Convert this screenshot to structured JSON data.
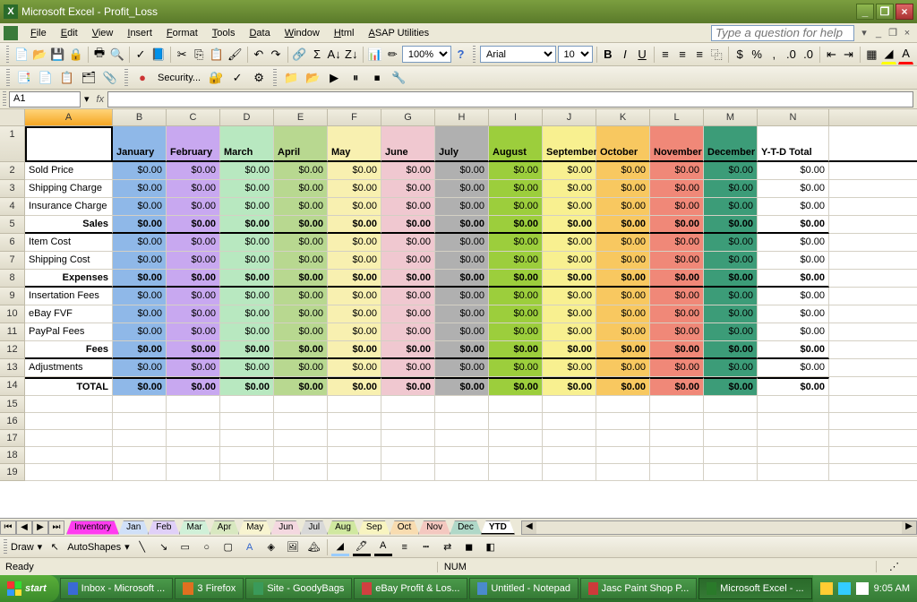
{
  "window": {
    "title": "Microsoft Excel - Profit_Loss"
  },
  "menu": [
    "File",
    "Edit",
    "View",
    "Insert",
    "Format",
    "Tools",
    "Data",
    "Window",
    "Html",
    "ASAP Utilities"
  ],
  "help_placeholder": "Type a question for help",
  "toolbar2": {
    "font": "Arial",
    "size": "10",
    "zoom": "100%",
    "security": "Security..."
  },
  "namebox": "A1",
  "columns": [
    "A",
    "B",
    "C",
    "D",
    "E",
    "F",
    "G",
    "H",
    "I",
    "J",
    "K",
    "L",
    "M",
    "N"
  ],
  "months": [
    "January",
    "February",
    "March",
    "April",
    "May",
    "June",
    "July",
    "August",
    "September",
    "October",
    "November",
    "December"
  ],
  "month_colors": [
    "#8fb8e8",
    "#c8a8f0",
    "#b8e8c0",
    "#b8d890",
    "#f8f0b0",
    "#f0c8d0",
    "#b0b0b0",
    "#9cce3c",
    "#f8f090",
    "#f8c860",
    "#f08878",
    "#3c9c78"
  ],
  "ytd_label": "Y-T-D Total",
  "rows": [
    {
      "n": 2,
      "label": "Sold Price",
      "type": "data"
    },
    {
      "n": 3,
      "label": "Shipping Charge",
      "type": "data"
    },
    {
      "n": 4,
      "label": "Insurance Charge",
      "type": "data"
    },
    {
      "n": 5,
      "label": "Sales",
      "type": "section"
    },
    {
      "n": 6,
      "label": "Item Cost",
      "type": "data"
    },
    {
      "n": 7,
      "label": "Shipping Cost",
      "type": "data"
    },
    {
      "n": 8,
      "label": "Expenses",
      "type": "section"
    },
    {
      "n": 9,
      "label": "Insertation Fees",
      "type": "data"
    },
    {
      "n": 10,
      "label": "eBay FVF",
      "type": "data"
    },
    {
      "n": 11,
      "label": "PayPal Fees",
      "type": "data"
    },
    {
      "n": 12,
      "label": "Fees",
      "type": "section"
    },
    {
      "n": 13,
      "label": "Adjustments",
      "type": "data"
    },
    {
      "n": 14,
      "label": "TOTAL",
      "type": "total"
    }
  ],
  "cell_value": "$0.00",
  "empty_rows": [
    15,
    16,
    17,
    18,
    19
  ],
  "sheet_tabs": [
    {
      "label": "Inventory",
      "color": "#ff3cf0"
    },
    {
      "label": "Jan",
      "color": "#d0e0f8"
    },
    {
      "label": "Feb",
      "color": "#e0d0f8"
    },
    {
      "label": "Mar",
      "color": "#d0f0d8"
    },
    {
      "label": "Apr",
      "color": "#d8e8c0"
    },
    {
      "label": "May",
      "color": "#f8f4d0"
    },
    {
      "label": "Jun",
      "color": "#f4d8e0"
    },
    {
      "label": "Jul",
      "color": "#d8d8d8"
    },
    {
      "label": "Aug",
      "color": "#d0e8a0"
    },
    {
      "label": "Sep",
      "color": "#f8f4c0"
    },
    {
      "label": "Oct",
      "color": "#f8dcb0"
    },
    {
      "label": "Nov",
      "color": "#f4c8c0"
    },
    {
      "label": "Dec",
      "color": "#b0d8c8"
    },
    {
      "label": "YTD",
      "color": "#ffffff",
      "active": true
    }
  ],
  "draw": {
    "label": "Draw",
    "autoshapes": "AutoShapes"
  },
  "status": {
    "ready": "Ready",
    "num": "NUM"
  },
  "taskbar": {
    "start": "start",
    "items": [
      {
        "label": "Inbox - Microsoft ...",
        "icon": "#3a6ad4"
      },
      {
        "label": "3 Firefox",
        "icon": "#e07020"
      },
      {
        "label": "Site - GoodyBags",
        "icon": "#3a9a5a"
      },
      {
        "label": "eBay Profit & Los...",
        "icon": "#d04040"
      },
      {
        "label": "Untitled - Notepad",
        "icon": "#4a8acc"
      },
      {
        "label": "Jasc Paint Shop P...",
        "icon": "#cc3a3a"
      },
      {
        "label": "Microsoft Excel - ...",
        "icon": "#2a7a2a",
        "active": true
      }
    ],
    "time": "9:05 AM"
  }
}
